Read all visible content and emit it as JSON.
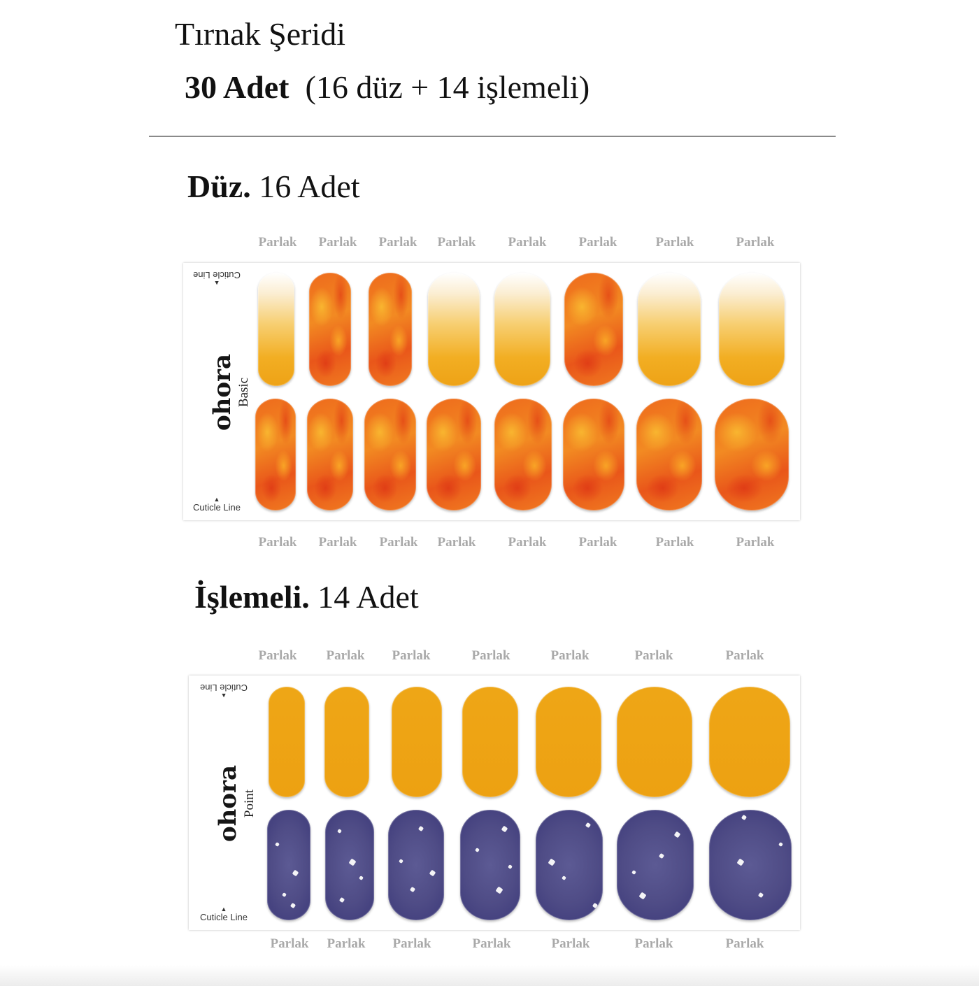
{
  "header": {
    "title": "Tırnak Şeridi",
    "count_bold": "30 Adet",
    "count_detail": "(16 düz + 14 işlemeli)"
  },
  "sections": {
    "basic": {
      "heading_bold": "Düz.",
      "heading_rest": "16 Adet",
      "brand": "ohora",
      "line": "Basic",
      "cuticle_label": "Cuticle Line",
      "top_labels": [
        "Parlak",
        "Parlak",
        "Parlak",
        "Parlak",
        "Parlak",
        "Parlak",
        "Parlak",
        "Parlak"
      ],
      "bottom_labels": [
        "Parlak",
        "Parlak",
        "Parlak",
        "Parlak",
        "Parlak",
        "Parlak",
        "Parlak",
        "Parlak"
      ]
    },
    "point": {
      "heading_bold": "İşlemeli.",
      "heading_rest": "14 Adet",
      "brand": "ohora",
      "line": "Point",
      "cuticle_label": "Cuticle Line",
      "top_labels": [
        "Parlak",
        "Parlak",
        "Parlak",
        "Parlak",
        "Parlak",
        "Parlak",
        "Parlak"
      ],
      "bottom_labels": [
        "Parlak",
        "Parlak",
        "Parlak",
        "Parlak",
        "Parlak",
        "Parlak",
        "Parlak"
      ]
    }
  },
  "colors": {
    "ombre_orange": "#eea216",
    "marble_orange": "#ee6a1c",
    "solid_orange": "#eea616",
    "navy": "#4f4c86",
    "label_gray": "#a9a9a9"
  }
}
